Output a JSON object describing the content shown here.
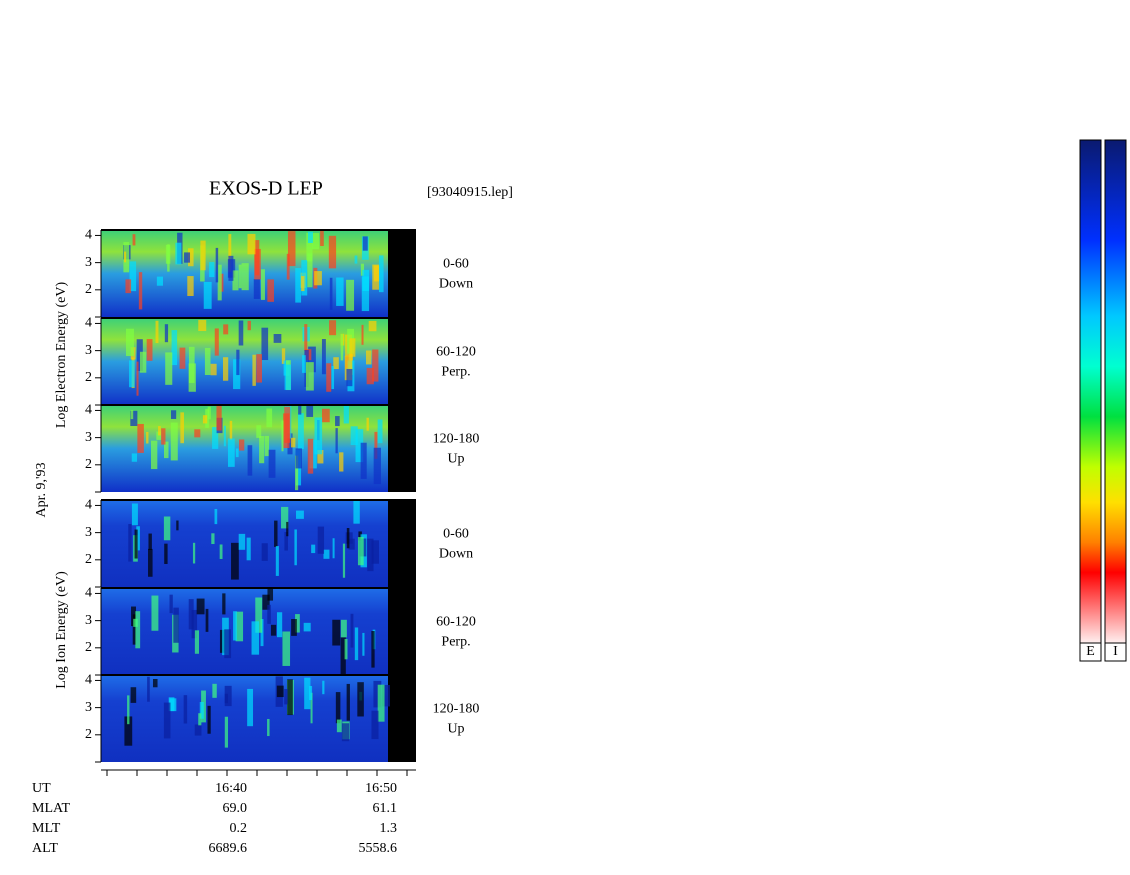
{
  "title": "EXOS-D LEP",
  "file": "[93040915.lep]",
  "date": "Apr. 9,'93",
  "electron_axis_label": "Log  Electron  Energy  (eV)",
  "ion_axis_label": "Log  Ion  Energy  (eV)",
  "ylim": [
    1,
    4.2
  ],
  "yticks": [
    2,
    3,
    4
  ],
  "panels": [
    {
      "species": "electron",
      "pitch": "0-60",
      "direction": "Down"
    },
    {
      "species": "electron",
      "pitch": "60-120",
      "direction": "Perp."
    },
    {
      "species": "electron",
      "pitch": "120-180",
      "direction": "Up"
    },
    {
      "species": "ion",
      "pitch": "0-60",
      "direction": "Down"
    },
    {
      "species": "ion",
      "pitch": "60-120",
      "direction": "Perp."
    },
    {
      "species": "ion",
      "pitch": "120-180",
      "direction": "Up"
    }
  ],
  "time_rows": [
    {
      "name": "UT",
      "values": [
        "16:40",
        "16:50"
      ]
    },
    {
      "name": "MLAT",
      "values": [
        "69.0",
        "61.1"
      ]
    },
    {
      "name": "MLT",
      "values": [
        "0.2",
        "1.3"
      ]
    },
    {
      "name": "ALT",
      "values": [
        "6689.6",
        "5558.6"
      ]
    }
  ],
  "colorbar_labels": [
    "E",
    "I"
  ]
}
